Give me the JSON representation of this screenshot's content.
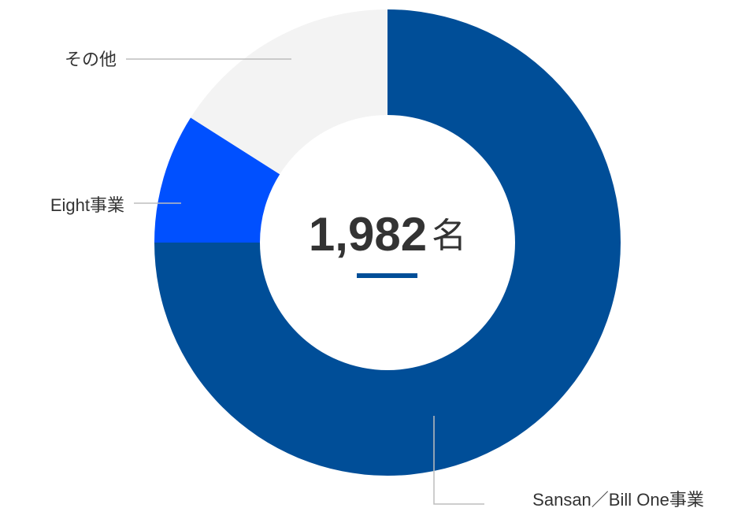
{
  "chart_data": {
    "type": "pie",
    "categories": [
      "Sansan／Bill One事業",
      "Eight事業",
      "その他"
    ],
    "values": [
      75,
      9,
      16
    ],
    "colors": [
      "#004e98",
      "#0050ff",
      "#f3f3f3"
    ],
    "center_text": "1,982",
    "center_unit": "名"
  }
}
